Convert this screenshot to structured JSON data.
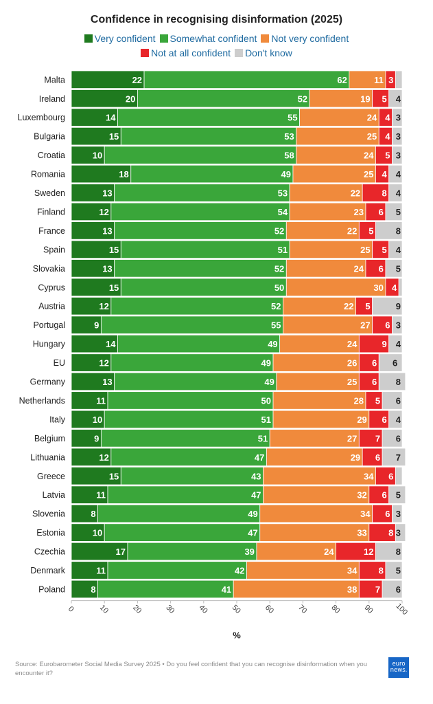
{
  "chart_data": {
    "type": "bar",
    "orientation": "horizontal",
    "stacked": true,
    "title": "Confidence in recognising disinformation (2025)",
    "xlabel": "%",
    "ylabel": "",
    "xlim": [
      0,
      100
    ],
    "xticks": [
      "0",
      "10",
      "20",
      "30",
      "40",
      "50",
      "60",
      "70",
      "80",
      "90",
      "100"
    ],
    "categories": [
      "Malta",
      "Ireland",
      "Luxembourg",
      "Bulgaria",
      "Croatia",
      "Romania",
      "Sweden",
      "Finland",
      "France",
      "Spain",
      "Slovakia",
      "Cyprus",
      "Austria",
      "Portugal",
      "Hungary",
      "EU",
      "Germany",
      "Netherlands",
      "Italy",
      "Belgium",
      "Lithuania",
      "Greece",
      "Latvia",
      "Slovenia",
      "Estonia",
      "Czechia",
      "Denmark",
      "Poland"
    ],
    "series": [
      {
        "name": "Very confident",
        "color": "#1f7a1f",
        "values": [
          22,
          20,
          14,
          15,
          10,
          18,
          13,
          12,
          13,
          15,
          13,
          15,
          12,
          9,
          14,
          12,
          13,
          11,
          10,
          9,
          12,
          15,
          11,
          8,
          10,
          17,
          11,
          8
        ]
      },
      {
        "name": "Somewhat confident",
        "color": "#3aa63a",
        "values": [
          62,
          52,
          55,
          53,
          58,
          49,
          53,
          54,
          52,
          51,
          52,
          50,
          52,
          55,
          49,
          49,
          49,
          50,
          51,
          51,
          47,
          43,
          47,
          49,
          47,
          39,
          42,
          41
        ]
      },
      {
        "name": "Not very confident",
        "color": "#f08a3c",
        "values": [
          11,
          19,
          24,
          25,
          24,
          25,
          22,
          23,
          22,
          25,
          24,
          30,
          22,
          27,
          24,
          26,
          25,
          28,
          29,
          27,
          29,
          34,
          32,
          34,
          33,
          24,
          34,
          38
        ]
      },
      {
        "name": "Not at all confident",
        "color": "#e8262a",
        "values": [
          3,
          5,
          4,
          4,
          5,
          4,
          8,
          6,
          5,
          5,
          6,
          4,
          5,
          6,
          9,
          6,
          6,
          5,
          6,
          7,
          6,
          6,
          6,
          6,
          8,
          12,
          8,
          7
        ]
      },
      {
        "name": "Don't know",
        "color": "#cdcdcd",
        "values": [
          2,
          4,
          3,
          3,
          3,
          4,
          4,
          5,
          8,
          4,
          5,
          1,
          9,
          3,
          4,
          6,
          8,
          6,
          4,
          6,
          7,
          2,
          5,
          3,
          3,
          8,
          5,
          6
        ]
      }
    ],
    "hidden_labels": {
      "Don't know": [
        "Malta",
        "Cyprus",
        "Greece"
      ]
    }
  },
  "legend_rows": [
    [
      "Very confident",
      "Somewhat confident",
      "Not very confident"
    ],
    [
      "Not at all confident",
      "Don't know"
    ]
  ],
  "source": "Source: Eurobarometer Social Media Survey 2025 • Do you feel confident that you can recognise disinformation when you encounter it?",
  "logo": {
    "line1": "euro",
    "line2": "news."
  }
}
